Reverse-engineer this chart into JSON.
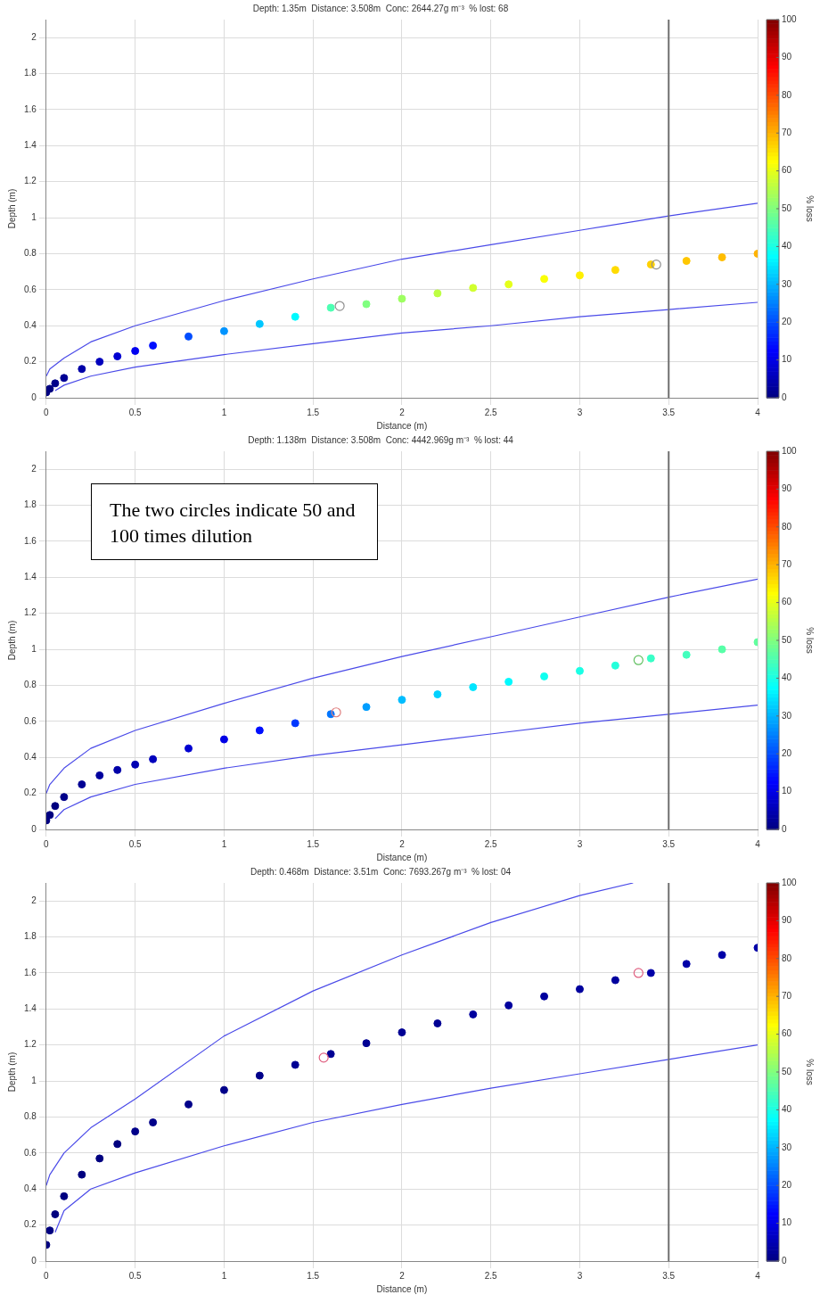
{
  "chart_data": [
    {
      "type": "scatter",
      "title": "Depth: 1.35m  Distance: 3.508m  Conc: 2644.27g m⁻³  % lost: 68",
      "xlabel": "Distance (m)",
      "ylabel": "Depth (m)",
      "clabel": "% loss",
      "xlim": [
        0,
        4
      ],
      "xticks": [
        0,
        0.5,
        1,
        1.5,
        2,
        2.5,
        3,
        3.5,
        4
      ],
      "ylim": [
        0,
        2.1
      ],
      "yticks": [
        0,
        0.2,
        0.4,
        0.6,
        0.8,
        1,
        1.2,
        1.4,
        1.6,
        1.8,
        2
      ],
      "clim": [
        0,
        100
      ],
      "cticks": [
        0,
        10,
        20,
        30,
        40,
        50,
        60,
        70,
        80,
        90,
        100
      ],
      "grid": true,
      "legend": false,
      "ref_lines": [
        {
          "axis": "x",
          "value": 3.5,
          "color": "#707070"
        }
      ],
      "series": [
        {
          "type": "line",
          "marker": "none",
          "color": "#4a4ae8",
          "x": [
            0,
            0.02,
            0.1,
            0.25,
            0.5,
            1,
            1.5,
            2,
            2.5,
            3,
            3.5,
            4
          ],
          "values": [
            0.12,
            0.16,
            0.22,
            0.31,
            0.4,
            0.54,
            0.66,
            0.77,
            0.85,
            0.93,
            1.01,
            1.08
          ]
        },
        {
          "type": "line",
          "marker": "none",
          "color": "#4a4ae8",
          "x": [
            0.05,
            0.1,
            0.25,
            0.5,
            1,
            1.5,
            2,
            2.5,
            3,
            3.5,
            4
          ],
          "values": [
            0.04,
            0.07,
            0.12,
            0.17,
            0.24,
            0.3,
            0.36,
            0.4,
            0.45,
            0.49,
            0.53
          ]
        },
        {
          "marker": "circle",
          "x": [
            0,
            0.02,
            0.05,
            0.1,
            0.2,
            0.3,
            0.4,
            0.5,
            0.6,
            0.8,
            1,
            1.2,
            1.4,
            1.6,
            1.8,
            2,
            2.2,
            2.4,
            2.6,
            2.8,
            3,
            3.2,
            3.4,
            3.6,
            3.8,
            4
          ],
          "values": [
            0.03,
            0.05,
            0.08,
            0.11,
            0.16,
            0.2,
            0.23,
            0.26,
            0.29,
            0.34,
            0.37,
            0.41,
            0.45,
            0.5,
            0.52,
            0.55,
            0.58,
            0.61,
            0.63,
            0.66,
            0.68,
            0.71,
            0.74,
            0.76,
            0.78,
            0.8
          ],
          "cvalues": [
            0,
            0,
            1,
            2,
            4,
            6,
            8,
            11,
            14,
            20,
            27,
            32,
            37,
            45,
            50,
            53,
            56,
            58,
            60,
            62,
            64,
            66,
            67,
            68,
            69,
            70
          ],
          "colors": [
            "#000080",
            "#000080",
            "#00008a",
            "#000094",
            "#0000a8",
            "#0000bd",
            "#0000d1",
            "#0000f0",
            "#000fff",
            "#004dff",
            "#0094ff",
            "#00c7ff",
            "#00faff",
            "#4dffb3",
            "#80ff80",
            "#9eff61",
            "#bdff42",
            "#d1ff2e",
            "#e6ff1a",
            "#faff05",
            "#fff000",
            "#ffdb00",
            "#ffd100",
            "#ffc700",
            "#ffbd00",
            "#ffb300"
          ]
        },
        {
          "marker": "circle",
          "color": "#909090",
          "x": [
            1.65,
            3.43
          ],
          "values": [
            0.51,
            0.74
          ]
        }
      ]
    },
    {
      "type": "scatter",
      "title": "Depth: 1.138m  Distance: 3.508m  Conc: 4442.969g m⁻³  % lost: 44",
      "xlabel": "Distance (m)",
      "ylabel": "Depth (m)",
      "clabel": "% loss",
      "annotations": [
        "The two circles indicate 50 and 100 times dilution"
      ],
      "xlim": [
        0,
        4
      ],
      "xticks": [
        0,
        0.5,
        1,
        1.5,
        2,
        2.5,
        3,
        3.5,
        4
      ],
      "ylim": [
        0,
        2.1
      ],
      "yticks": [
        0,
        0.2,
        0.4,
        0.6,
        0.8,
        1,
        1.2,
        1.4,
        1.6,
        1.8,
        2
      ],
      "clim": [
        0,
        100
      ],
      "cticks": [
        0,
        10,
        20,
        30,
        40,
        50,
        60,
        70,
        80,
        90,
        100
      ],
      "grid": true,
      "legend": false,
      "ref_lines": [
        {
          "axis": "x",
          "value": 3.5,
          "color": "#707070"
        }
      ],
      "series": [
        {
          "type": "line",
          "marker": "none",
          "color": "#4a4ae8",
          "x": [
            0,
            0.02,
            0.1,
            0.25,
            0.5,
            1,
            1.5,
            2,
            2.5,
            3,
            3.5,
            4
          ],
          "values": [
            0.2,
            0.25,
            0.34,
            0.45,
            0.55,
            0.7,
            0.84,
            0.96,
            1.07,
            1.18,
            1.29,
            1.39
          ]
        },
        {
          "type": "line",
          "marker": "none",
          "color": "#4a4ae8",
          "x": [
            0.05,
            0.1,
            0.25,
            0.5,
            1,
            1.5,
            2,
            2.5,
            3,
            3.5,
            4
          ],
          "values": [
            0.06,
            0.11,
            0.18,
            0.25,
            0.34,
            0.41,
            0.47,
            0.53,
            0.59,
            0.64,
            0.69
          ]
        },
        {
          "marker": "circle",
          "x": [
            0,
            0.02,
            0.05,
            0.1,
            0.2,
            0.3,
            0.4,
            0.5,
            0.6,
            0.8,
            1,
            1.2,
            1.4,
            1.6,
            1.8,
            2,
            2.2,
            2.4,
            2.6,
            2.8,
            3,
            3.2,
            3.4,
            3.6,
            3.8,
            4
          ],
          "values": [
            0.05,
            0.08,
            0.13,
            0.18,
            0.25,
            0.3,
            0.33,
            0.36,
            0.39,
            0.45,
            0.5,
            0.55,
            0.59,
            0.64,
            0.68,
            0.72,
            0.75,
            0.79,
            0.82,
            0.85,
            0.88,
            0.91,
            0.95,
            0.97,
            1,
            1.04
          ],
          "cvalues": [
            0,
            0,
            0,
            1,
            2,
            3,
            4,
            5,
            6,
            8,
            10,
            14,
            18,
            24,
            28,
            31,
            33,
            35,
            37,
            39,
            40,
            41,
            43,
            44,
            46,
            47
          ],
          "colors": [
            "#000080",
            "#000080",
            "#000080",
            "#00008a",
            "#000094",
            "#00009e",
            "#0000a8",
            "#0000b3",
            "#0000bd",
            "#0000d1",
            "#0000e6",
            "#000fff",
            "#0038ff",
            "#0075ff",
            "#009eff",
            "#00bdff",
            "#00d1ff",
            "#00e6ff",
            "#00faff",
            "#0ffff0",
            "#1affe6",
            "#24ffdb",
            "#38ffc7",
            "#42ffbd",
            "#57ffa8",
            "#61ff9e"
          ]
        },
        {
          "marker": "circle",
          "colors": [
            "#e08080",
            "#60c060"
          ],
          "x": [
            1.63,
            3.33
          ],
          "values": [
            0.65,
            0.94
          ]
        }
      ]
    },
    {
      "type": "scatter",
      "title": "Depth: 0.468m  Distance: 3.51m  Conc: 7693.267g m⁻³  % lost: 04",
      "xlabel": "Distance (m)",
      "ylabel": "Depth (m)",
      "clabel": "% loss",
      "xlim": [
        0,
        4
      ],
      "xticks": [
        0,
        0.5,
        1,
        1.5,
        2,
        2.5,
        3,
        3.5,
        4
      ],
      "ylim": [
        0,
        2.1
      ],
      "yticks": [
        0,
        0.2,
        0.4,
        0.6,
        0.8,
        1,
        1.2,
        1.4,
        1.6,
        1.8,
        2
      ],
      "clim": [
        0,
        100
      ],
      "cticks": [
        0,
        10,
        20,
        30,
        40,
        50,
        60,
        70,
        80,
        90,
        100
      ],
      "grid": true,
      "legend": false,
      "ref_lines": [
        {
          "axis": "x",
          "value": 3.5,
          "color": "#707070"
        }
      ],
      "series": [
        {
          "type": "line",
          "marker": "none",
          "color": "#4a4ae8",
          "x": [
            0,
            0.02,
            0.1,
            0.25,
            0.5,
            1,
            1.5,
            2,
            2.5,
            3,
            3.3
          ],
          "values": [
            0.42,
            0.48,
            0.6,
            0.74,
            0.9,
            1.25,
            1.5,
            1.7,
            1.88,
            2.03,
            2.1
          ]
        },
        {
          "type": "line",
          "marker": "none",
          "color": "#4a4ae8",
          "x": [
            0.05,
            0.1,
            0.25,
            0.5,
            1,
            1.5,
            2,
            2.5,
            3,
            3.5,
            4
          ],
          "values": [
            0.16,
            0.28,
            0.4,
            0.49,
            0.64,
            0.77,
            0.87,
            0.96,
            1.04,
            1.12,
            1.2
          ]
        },
        {
          "marker": "circle",
          "x": [
            0,
            0.02,
            0.05,
            0.1,
            0.2,
            0.3,
            0.4,
            0.5,
            0.6,
            0.8,
            1,
            1.2,
            1.4,
            1.6,
            1.8,
            2,
            2.2,
            2.4,
            2.6,
            2.8,
            3,
            3.2,
            3.4,
            3.6,
            3.8,
            4
          ],
          "values": [
            0.09,
            0.17,
            0.26,
            0.36,
            0.48,
            0.57,
            0.65,
            0.72,
            0.77,
            0.87,
            0.95,
            1.03,
            1.09,
            1.15,
            1.21,
            1.27,
            1.32,
            1.37,
            1.42,
            1.47,
            1.51,
            1.56,
            1.6,
            1.65,
            1.7,
            1.74
          ],
          "cvalues": [
            0,
            0,
            0,
            0,
            0,
            0,
            0,
            1,
            1,
            1,
            1,
            1,
            2,
            2,
            2,
            2,
            2,
            3,
            3,
            3,
            3,
            3,
            4,
            4,
            4,
            4
          ],
          "colors": [
            "#000080",
            "#000080",
            "#000080",
            "#000080",
            "#000080",
            "#000080",
            "#000080",
            "#00008a",
            "#00008a",
            "#00008a",
            "#00008a",
            "#00008a",
            "#000094",
            "#000094",
            "#000094",
            "#000094",
            "#000094",
            "#00009e",
            "#00009e",
            "#00009e",
            "#00009e",
            "#00009e",
            "#0000a8",
            "#0000a8",
            "#0000a8",
            "#0000a8"
          ]
        },
        {
          "marker": "circle",
          "color": "#e06080",
          "x": [
            1.56,
            3.33
          ],
          "values": [
            1.13,
            1.6
          ]
        }
      ]
    }
  ]
}
